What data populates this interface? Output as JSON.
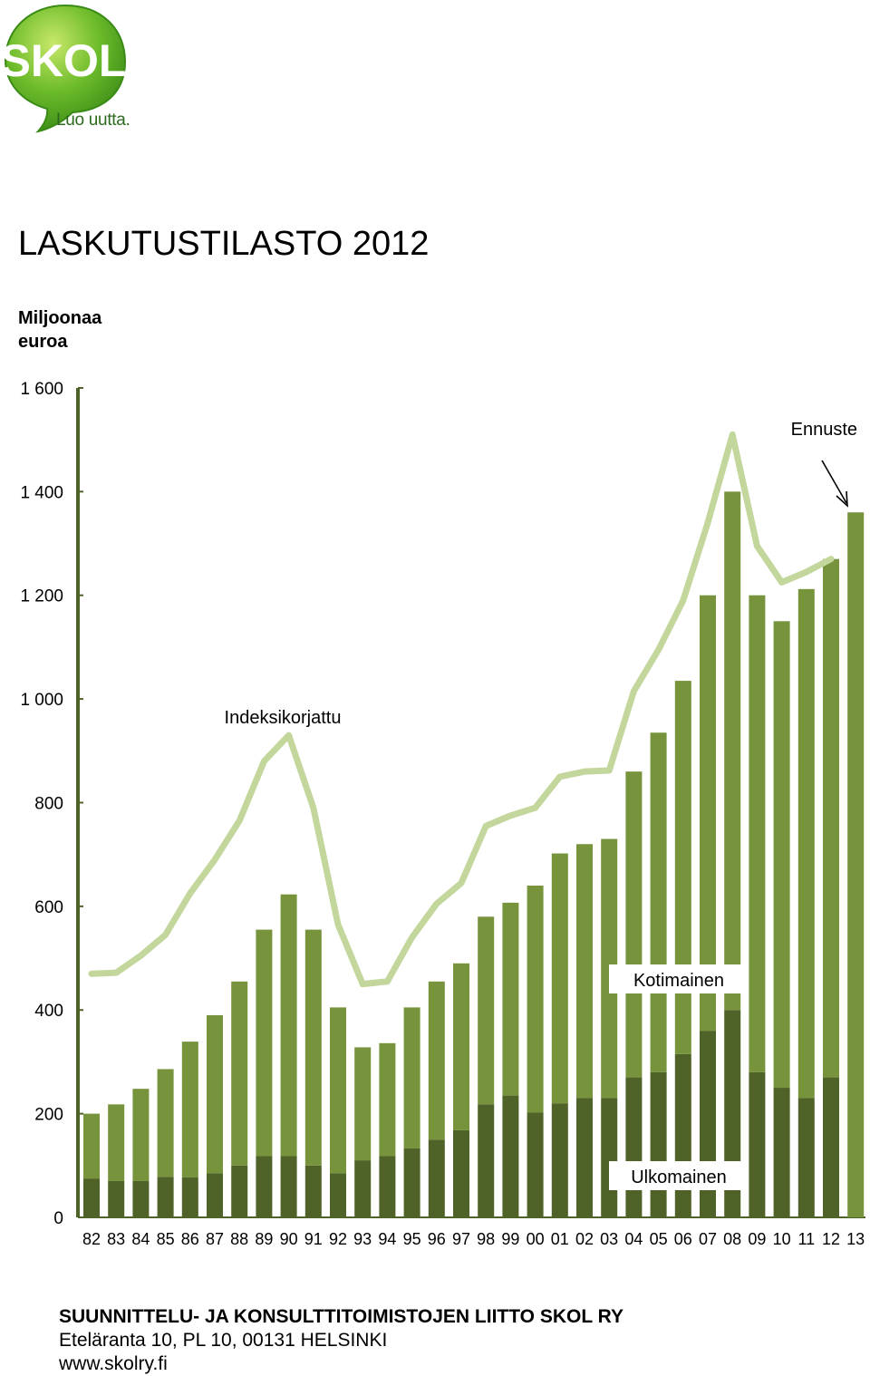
{
  "logo": {
    "brand": "SKOL",
    "tagline": "Luo uutta."
  },
  "title": "LASKUTUSTILASTO 2012",
  "unit_label": "Miljoonaa euroa",
  "chart_data": {
    "type": "bar",
    "stacked": true,
    "ylim": [
      0,
      1600
    ],
    "yticks": [
      0,
      200,
      400,
      600,
      800,
      1000,
      1200,
      1400,
      1600
    ],
    "ytick_labels": [
      "0",
      "200",
      "400",
      "600",
      "800",
      "1 000",
      "1 200",
      "1 400",
      "1 600"
    ],
    "categories": [
      "82",
      "83",
      "84",
      "85",
      "86",
      "87",
      "88",
      "89",
      "90",
      "91",
      "92",
      "93",
      "94",
      "95",
      "96",
      "97",
      "98",
      "99",
      "00",
      "01",
      "02",
      "03",
      "04",
      "05",
      "06",
      "07",
      "08",
      "09",
      "10",
      "11",
      "12",
      "13"
    ],
    "series": [
      {
        "name": "Ulkomainen",
        "color": "#4f6228",
        "values": [
          75,
          70,
          70,
          78,
          77,
          85,
          100,
          118,
          118,
          100,
          85,
          110,
          118,
          133,
          150,
          168,
          218,
          235,
          202,
          220,
          230,
          230,
          270,
          280,
          315,
          360,
          400,
          280,
          250,
          230,
          270,
          0
        ]
      },
      {
        "name": "Kotimainen",
        "color": "#77933c",
        "values": [
          125,
          148,
          178,
          208,
          262,
          305,
          355,
          437,
          505,
          455,
          320,
          218,
          218,
          272,
          305,
          322,
          362,
          372,
          438,
          482,
          490,
          500,
          590,
          655,
          720,
          840,
          1000,
          920,
          900,
          982,
          1000,
          1360
        ]
      },
      {
        "name": "Indeksikorjattu",
        "type": "line",
        "color": "#c3d69b",
        "values": [
          470,
          472,
          505,
          545,
          625,
          690,
          765,
          880,
          930,
          790,
          565,
          450,
          455,
          540,
          605,
          645,
          755,
          775,
          790,
          850,
          860,
          862,
          1015,
          1095,
          1190,
          1340,
          1510,
          1295,
          1225,
          1245,
          1270,
          null
        ]
      }
    ],
    "annotations": {
      "forecast": "Ennuste"
    },
    "legend_placement": "inline labels"
  },
  "footer": {
    "org": "SUUNNITTELU- JA KONSULTTITOIMISTOJEN LIITTO SKOL RY",
    "address": "Eteläranta 10, PL 10, 00131 HELSINKI",
    "web": "www.skolry.fi"
  }
}
